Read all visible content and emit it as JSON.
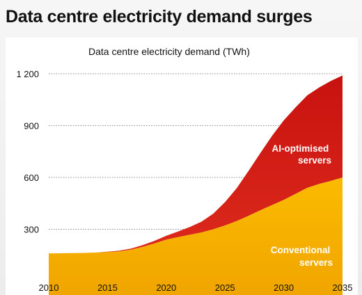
{
  "page_title": "Data centre electricity demand surges",
  "chart_data": {
    "type": "area",
    "stacked": true,
    "title": "Data centre electricity demand (TWh)",
    "xlabel": "",
    "ylabel": "",
    "x": [
      2010,
      2011,
      2012,
      2013,
      2014,
      2015,
      2016,
      2017,
      2018,
      2019,
      2020,
      2021,
      2022,
      2023,
      2024,
      2025,
      2026,
      2027,
      2028,
      2029,
      2030,
      2031,
      2032,
      2033,
      2034,
      2035
    ],
    "series": [
      {
        "name": "Conventional servers",
        "color": "#f9b400",
        "values": [
          160,
          161,
          162,
          163,
          165,
          168,
          172,
          182,
          198,
          218,
          240,
          255,
          268,
          282,
          300,
          322,
          348,
          378,
          410,
          440,
          470,
          505,
          540,
          562,
          580,
          600
        ]
      },
      {
        "name": "AI-optimised servers",
        "color": "#d41f1b",
        "values": [
          0,
          0,
          0,
          0,
          0,
          2,
          4,
          6,
          10,
          15,
          22,
          32,
          45,
          62,
          90,
          135,
          190,
          260,
          330,
          400,
          460,
          500,
          535,
          558,
          578,
          590
        ]
      }
    ],
    "xticks": [
      "2010",
      "2015",
      "2020",
      "2025",
      "2030",
      "2035"
    ],
    "yticks": [
      "300",
      "600",
      "900",
      "1 200"
    ],
    "ylim": [
      0,
      1200
    ],
    "xlim": [
      2010,
      2035
    ],
    "grid": "horizontal dotted",
    "legend": "inline labels",
    "annotations": {
      "ai": [
        "AI-optimised",
        "servers"
      ],
      "conventional": [
        "Conventional",
        "servers"
      ]
    }
  }
}
